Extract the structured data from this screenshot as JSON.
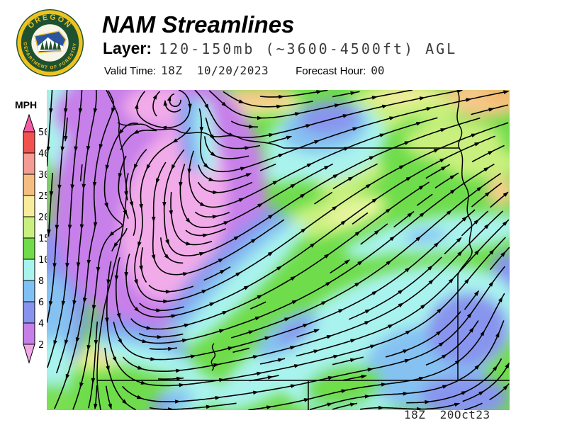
{
  "header": {
    "title": "NAM Streamlines",
    "layer_label": "Layer:",
    "layer_value": "120-150mb (~3600-4500ft) AGL",
    "valid_time_label": "Valid Time:",
    "valid_time_value": "18Z  10/20/2023",
    "forecast_hour_label": "Forecast Hour:",
    "forecast_hour_value": "00"
  },
  "logo": {
    "top_text": "OREGON",
    "bottom_text": "DEPARTMENT OF FORESTRY"
  },
  "legend": {
    "title": "MPH",
    "boundaries": [
      "50",
      "40",
      "30",
      "25",
      "20",
      "15",
      "10",
      "8",
      "6",
      "4",
      "2"
    ],
    "segment_colors": [
      "#F1524E",
      "#F49B93",
      "#F5BD80",
      "#F7EC9B",
      "#C9F07E",
      "#70DC49",
      "#A9F3EE",
      "#7FC1F4",
      "#8893EF",
      "#C67FE9"
    ],
    "over_color": "#F55CA8",
    "under_color": "#F0A9E6"
  },
  "map": {
    "annotation": "18Z  20Oct23"
  },
  "chart_data": {
    "type": "streamline_map",
    "title": "NAM Streamlines",
    "layer": "120-150mb (~3600-4500ft) AGL",
    "valid_time": "18Z 10/20/2023",
    "forecast_hour": "00",
    "speed_units": "MPH",
    "speed_scale": [
      2,
      4,
      6,
      8,
      10,
      15,
      20,
      25,
      30,
      40,
      50
    ],
    "legend_position": "left",
    "features": [
      "cyclonic eddy near the north Oregon coast",
      "calm (under 2 MPH) pink core over northwest Oregon",
      "southerly offshore flow along the coast turning east-northeast inland",
      "10-25 MPH west-southwest flow across eastern Oregon",
      "25-30 MPH patch at the northeast corner"
    ]
  }
}
